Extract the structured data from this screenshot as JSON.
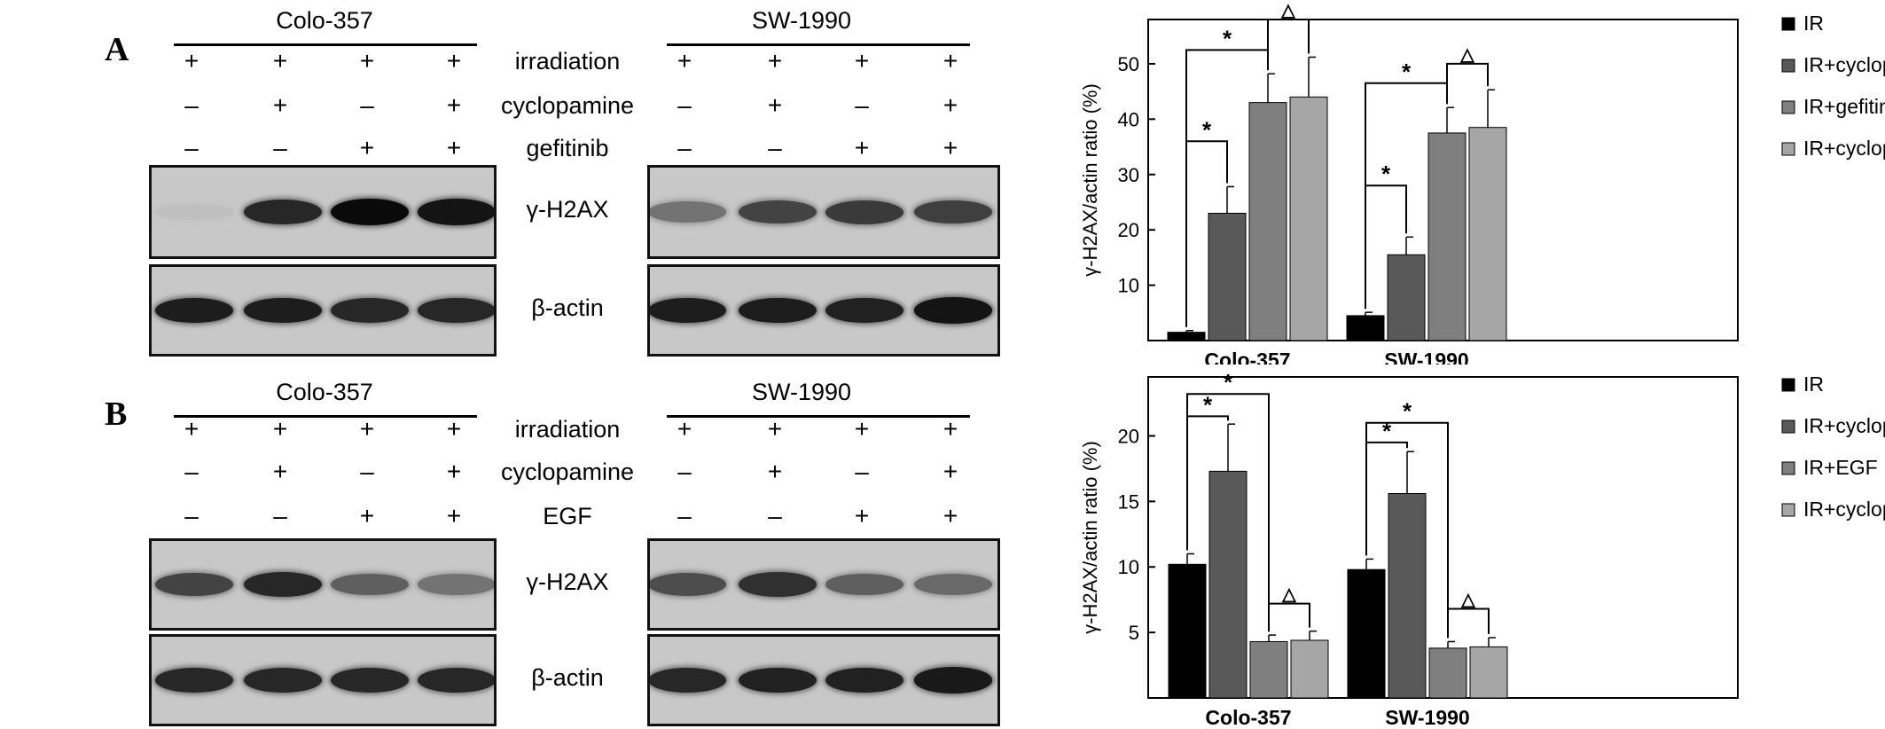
{
  "panels": [
    {
      "letter": "A",
      "cell_lines": [
        "Colo-357",
        "SW-1990"
      ],
      "treatment_rows": [
        {
          "label": "irradiation",
          "left": [
            "+",
            "+",
            "+",
            "+"
          ],
          "right": [
            "+",
            "+",
            "+",
            "+"
          ]
        },
        {
          "label": "cyclopamine",
          "left": [
            "–",
            "+",
            "–",
            "+"
          ],
          "right": [
            "–",
            "+",
            "–",
            "+"
          ]
        },
        {
          "label": "gefitinib",
          "left": [
            "–",
            "–",
            "+",
            "+"
          ],
          "right": [
            "–",
            "–",
            "+",
            "+"
          ]
        }
      ],
      "blots": [
        {
          "label": "γ-H2AX",
          "left_intensity": [
            0.05,
            0.85,
            1.0,
            0.95
          ],
          "right_intensity": [
            0.45,
            0.7,
            0.75,
            0.72
          ]
        },
        {
          "label": "β-actin",
          "left_intensity": [
            0.9,
            0.9,
            0.85,
            0.85
          ],
          "right_intensity": [
            0.9,
            0.9,
            0.88,
            0.95
          ]
        }
      ]
    },
    {
      "letter": "B",
      "cell_lines": [
        "Colo-357",
        "SW-1990"
      ],
      "treatment_rows": [
        {
          "label": "irradiation",
          "left": [
            "+",
            "+",
            "+",
            "+"
          ],
          "right": [
            "+",
            "+",
            "+",
            "+"
          ]
        },
        {
          "label": "cyclopamine",
          "left": [
            "–",
            "+",
            "–",
            "+"
          ],
          "right": [
            "–",
            "+",
            "–",
            "+"
          ]
        },
        {
          "label": "EGF",
          "left": [
            "–",
            "–",
            "+",
            "+"
          ],
          "right": [
            "–",
            "–",
            "+",
            "+"
          ]
        }
      ],
      "blots": [
        {
          "label": "γ-H2AX",
          "left_intensity": [
            0.7,
            0.85,
            0.55,
            0.45
          ],
          "right_intensity": [
            0.65,
            0.8,
            0.55,
            0.5
          ]
        },
        {
          "label": "β-actin",
          "left_intensity": [
            0.85,
            0.85,
            0.85,
            0.85
          ],
          "right_intensity": [
            0.85,
            0.88,
            0.88,
            0.92
          ]
        }
      ]
    }
  ],
  "chart_data": [
    {
      "type": "bar",
      "ylabel": "γ-H2AX/actin ratio (%)",
      "categories": [
        "Colo-357",
        "SW-1990"
      ],
      "yticks": [
        10,
        20,
        30,
        40,
        50
      ],
      "ylim": [
        0,
        58
      ],
      "series": [
        {
          "name": "IR",
          "color": "#000000",
          "values": [
            1.5,
            4.5
          ],
          "errors": [
            0.3,
            0.6
          ]
        },
        {
          "name": "IR+cyclopamine",
          "color": "#595959",
          "values": [
            23,
            15.5
          ],
          "errors": [
            4.8,
            3.2
          ]
        },
        {
          "name": "IR+gefitinib",
          "color": "#7f7f7f",
          "values": [
            43,
            37.5
          ],
          "errors": [
            5.2,
            4.6
          ]
        },
        {
          "name": "IR+cyclopamine+gefitinib",
          "color": "#a6a6a6",
          "values": [
            44,
            38.5
          ],
          "errors": [
            7.2,
            6.8
          ]
        }
      ],
      "annotations": [
        {
          "category": 0,
          "from": 0,
          "to": 1,
          "level": 36,
          "symbol": "*"
        },
        {
          "category": 0,
          "from": 0,
          "to": 2,
          "level": 52.5,
          "symbol": "*"
        },
        {
          "category": 0,
          "from": 2,
          "to": 3,
          "level": 58,
          "symbol": "△"
        },
        {
          "category": 1,
          "from": 0,
          "to": 1,
          "level": 28,
          "symbol": "*"
        },
        {
          "category": 1,
          "from": 0,
          "to": 2,
          "level": 46.5,
          "symbol": "*"
        },
        {
          "category": 1,
          "from": 2,
          "to": 3,
          "level": 50,
          "symbol": "△"
        }
      ],
      "legend_position": "right"
    },
    {
      "type": "bar",
      "ylabel": "γ-H2AX/actin ratio (%)",
      "categories": [
        "Colo-357",
        "SW-1990"
      ],
      "yticks": [
        5,
        10,
        15,
        20
      ],
      "ylim": [
        0,
        24.5
      ],
      "series": [
        {
          "name": "IR",
          "color": "#000000",
          "values": [
            10.2,
            9.8
          ],
          "errors": [
            0.8,
            0.8
          ]
        },
        {
          "name": "IR+cyclopamine",
          "color": "#595959",
          "values": [
            17.3,
            15.6
          ],
          "errors": [
            3.6,
            3.2
          ]
        },
        {
          "name": "IR+EGF",
          "color": "#7f7f7f",
          "values": [
            4.3,
            3.8
          ],
          "errors": [
            0.5,
            0.5
          ]
        },
        {
          "name": "IR+cyclopamine+EGF",
          "color": "#a6a6a6",
          "values": [
            4.4,
            3.9
          ],
          "errors": [
            0.7,
            0.7
          ]
        }
      ],
      "annotations": [
        {
          "category": 0,
          "from": 0,
          "to": 1,
          "level": 21.5,
          "symbol": "*"
        },
        {
          "category": 0,
          "from": 0,
          "to": 2,
          "level": 23.2,
          "symbol": "*"
        },
        {
          "category": 0,
          "from": 2,
          "to": 3,
          "level": 7.2,
          "symbol": "△"
        },
        {
          "category": 1,
          "from": 0,
          "to": 1,
          "level": 19.5,
          "symbol": "*"
        },
        {
          "category": 1,
          "from": 0,
          "to": 2,
          "level": 21,
          "symbol": "*"
        },
        {
          "category": 1,
          "from": 2,
          "to": 3,
          "level": 6.8,
          "symbol": "△"
        }
      ],
      "legend_position": "right"
    }
  ]
}
